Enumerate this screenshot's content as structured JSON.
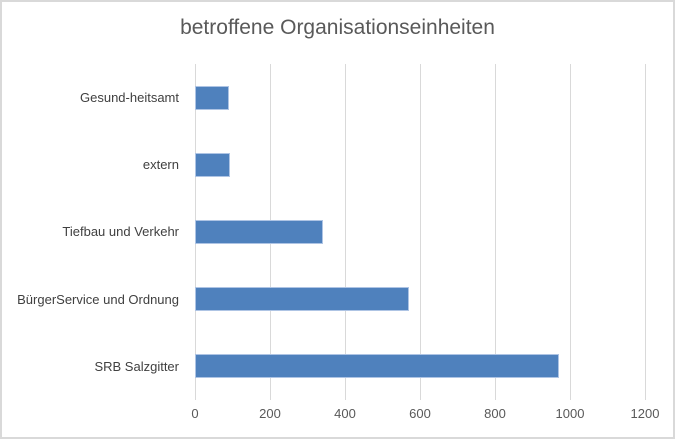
{
  "chart_data": {
    "type": "bar",
    "orientation": "horizontal",
    "title": "betroffene Organisationseinheiten",
    "categories_top_to_bottom": [
      "Gesund-heitsamt",
      "extern",
      "Tiefbau und Verkehr",
      "BürgerService und Ordnung",
      "SRB Salzgitter"
    ],
    "values": [
      90,
      93,
      340,
      570,
      970
    ],
    "xlabel": "",
    "ylabel": "",
    "xlim": [
      0,
      1200
    ],
    "xticks": [
      0,
      200,
      400,
      600,
      800,
      1000,
      1200
    ],
    "grid": "vertical-major-gridlines",
    "legend": "none",
    "data_labels": "none",
    "colors": {
      "bar_fill": "#4f81bd",
      "bar_border": "#aec4e4",
      "gridline": "#d9d9d9",
      "chart_background": "#ffffff",
      "chart_border": "#d9d9d9",
      "title_text": "#595959",
      "category_text": "#404040",
      "tick_text": "#595959"
    }
  }
}
